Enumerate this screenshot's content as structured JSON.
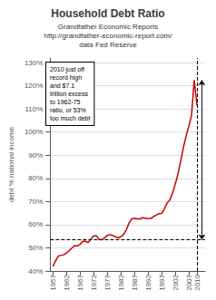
{
  "chart_data": {
    "type": "line",
    "title": "Household Debt Ratio",
    "subtitle": [
      "Grandfather Economic Reports",
      "http://grandfather-economic-report.com/",
      "data Fed Reserve"
    ],
    "ylabel": "debt % national income",
    "annotation": "2010 just off\nrecord high\nand $7.1\ntrillion excess\nto 1962-75\nratio, or 53%\ntoo much debt",
    "color": "#cc0000",
    "x": [
      1957,
      1958,
      1959,
      1960,
      1961,
      1962,
      1963,
      1964,
      1965,
      1966,
      1967,
      1968,
      1969,
      1970,
      1971,
      1972,
      1973,
      1974,
      1975,
      1976,
      1977,
      1978,
      1979,
      1980,
      1981,
      1982,
      1983,
      1984,
      1985,
      1986,
      1987,
      1988,
      1989,
      1990,
      1991,
      1992,
      1993,
      1994,
      1995,
      1996,
      1997,
      1998,
      1999,
      2000,
      2001,
      2002,
      2003,
      2004,
      2005,
      2006,
      2007,
      2008,
      2009,
      2010
    ],
    "values": [
      0.42,
      0.445,
      0.465,
      0.468,
      0.47,
      0.478,
      0.488,
      0.5,
      0.51,
      0.508,
      0.515,
      0.528,
      0.528,
      0.523,
      0.538,
      0.552,
      0.552,
      0.536,
      0.535,
      0.543,
      0.554,
      0.557,
      0.553,
      0.548,
      0.543,
      0.548,
      0.558,
      0.578,
      0.607,
      0.625,
      0.628,
      0.625,
      0.625,
      0.63,
      0.628,
      0.626,
      0.627,
      0.634,
      0.641,
      0.648,
      0.649,
      0.668,
      0.694,
      0.706,
      0.737,
      0.775,
      0.818,
      0.873,
      0.933,
      0.983,
      1.025,
      1.072,
      1.225,
      1.115
    ],
    "hlines": [
      0.535
    ],
    "vlines": [
      2010
    ],
    "arrow": {
      "x": 2011.8,
      "y": [
        0.535,
        1.225
      ]
    },
    "xlim": [
      1956,
      2013
    ],
    "xticks": [
      1957,
      1962,
      1967,
      1972,
      1977,
      1982,
      1987,
      1992,
      1997,
      2002,
      2007,
      2010
    ],
    "ylim": [
      0.4,
      1.32
    ],
    "yticks": [
      {
        "value": 0.4,
        "label": "40%"
      },
      {
        "value": 0.5,
        "label": "50%"
      },
      {
        "value": 0.6,
        "label": "60%"
      },
      {
        "value": 0.7,
        "label": "70%"
      },
      {
        "value": 0.8,
        "label": "80%"
      },
      {
        "value": 0.9,
        "label": "90%"
      },
      {
        "value": 1.0,
        "label": "100%"
      },
      {
        "value": 1.1,
        "label": "110%"
      },
      {
        "value": 1.2,
        "label": "120%"
      },
      {
        "value": 1.3,
        "label": "130%"
      }
    ],
    "grid": true
  }
}
